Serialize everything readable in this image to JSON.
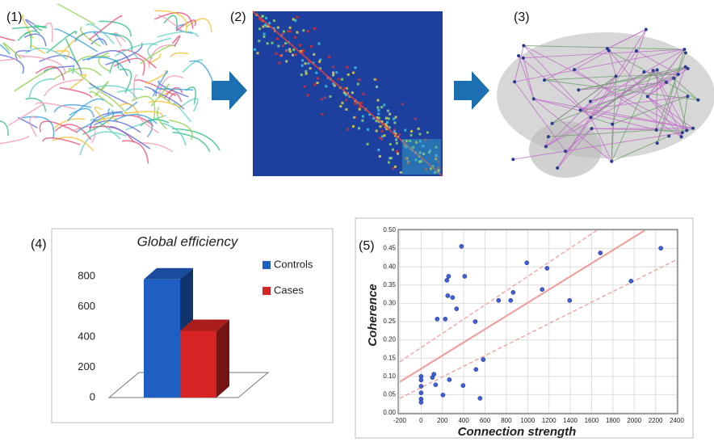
{
  "panels": [
    "(1)",
    "(2)",
    "(3)",
    "(4)",
    "(5)"
  ],
  "chart_data": [
    {
      "type": "bar3d",
      "title": "Global efficiency",
      "categories": [
        null
      ],
      "series": [
        {
          "name": "Controls",
          "color": "#1f5fc4",
          "values": [
            780
          ]
        },
        {
          "name": "Cases",
          "color": "#d62424",
          "values": [
            440
          ]
        }
      ],
      "ylim": [
        0,
        800
      ],
      "yticks": [
        0,
        200,
        400,
        600,
        800
      ],
      "legend": "right"
    },
    {
      "type": "scatter",
      "x_label": "Connection strength",
      "y_label": "Coherence",
      "color": "#3f5fd8",
      "grid": true,
      "x": [
        0,
        0,
        0,
        0,
        0,
        0,
        106,
        120,
        136,
        151,
        205,
        227,
        242,
        258,
        250,
        265,
        295,
        333,
        379,
        394,
        409,
        508,
        515,
        553,
        583,
        727,
        841,
        864,
        992,
        1136,
        1182,
        1394,
        1682,
        1970,
        2250
      ],
      "values": [
        0.1,
        0.09,
        0.073,
        0.055,
        0.038,
        0.029,
        0.097,
        0.106,
        0.077,
        0.257,
        0.049,
        0.257,
        0.363,
        0.374,
        0.321,
        0.091,
        0.316,
        0.285,
        0.456,
        0.075,
        0.374,
        0.25,
        0.119,
        0.04,
        0.146,
        0.308,
        0.308,
        0.33,
        0.411,
        0.338,
        0.396,
        0.308,
        0.438,
        0.361,
        0.451
      ],
      "lines": [
        {
          "x": [
            -200,
            2100
          ],
          "values": [
            0.085,
            0.5
          ],
          "color": "#f29a9a",
          "dashed": false
        },
        {
          "x": [
            -200,
            1650
          ],
          "values": [
            0.14,
            0.5
          ],
          "color": "#f2a8a8",
          "dashed": true
        },
        {
          "x": [
            -200,
            2400
          ],
          "values": [
            0.04,
            0.42
          ],
          "color": "#f2a8a8",
          "dashed": true
        }
      ],
      "xlim": [
        -200,
        2400
      ],
      "xticks": [
        -200,
        0,
        200,
        400,
        600,
        800,
        1000,
        1200,
        1400,
        1600,
        1800,
        2000,
        2200,
        2400
      ],
      "ylim": [
        0,
        0.5
      ],
      "yticks": [
        {
          "value": 0,
          "label": "0.00"
        },
        0.05,
        {
          "value": 0.1,
          "label": "0.10"
        },
        0.15,
        {
          "value": 0.2,
          "label": "0.20"
        },
        0.25,
        {
          "value": 0.3,
          "label": "0.30"
        },
        0.35,
        {
          "value": 0.4,
          "label": "0.40"
        },
        0.45,
        {
          "value": 0.5,
          "label": "0.50"
        }
      ]
    }
  ]
}
